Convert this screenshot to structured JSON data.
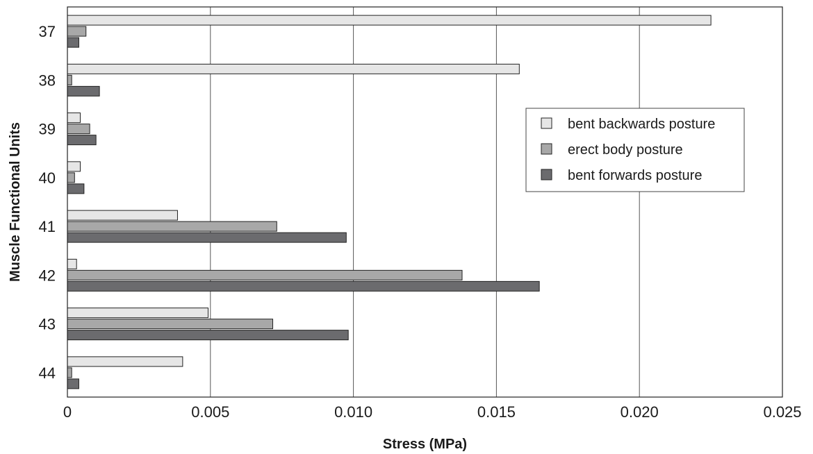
{
  "chart_data": {
    "type": "bar",
    "orientation": "horizontal",
    "xlabel": "Stress (MPa)",
    "ylabel": "Muscle Functional Units",
    "xlim": [
      0,
      0.025
    ],
    "x_ticks": [
      "0",
      "0.005",
      "0.010",
      "0.015",
      "0.020",
      "0.025"
    ],
    "grid": "vertical",
    "legend_position": "right",
    "categories": [
      "37",
      "38",
      "39",
      "40",
      "41",
      "42",
      "43",
      "44"
    ],
    "series": [
      {
        "name": "bent backwards posture",
        "color": "#e6e6e6",
        "values": [
          0.0225,
          0.0158,
          0.00045,
          0.00045,
          0.00385,
          0.00032,
          0.00492,
          0.00403
        ]
      },
      {
        "name": "erect body posture",
        "color": "#a8a8a8",
        "values": [
          0.00065,
          0.00015,
          0.00078,
          0.00025,
          0.00732,
          0.0138,
          0.00718,
          0.00015
        ]
      },
      {
        "name": "bent forwards posture",
        "color": "#6b6b6e",
        "values": [
          0.0004,
          0.00112,
          0.001,
          0.00058,
          0.00975,
          0.0165,
          0.00982,
          0.0004
        ]
      }
    ]
  }
}
